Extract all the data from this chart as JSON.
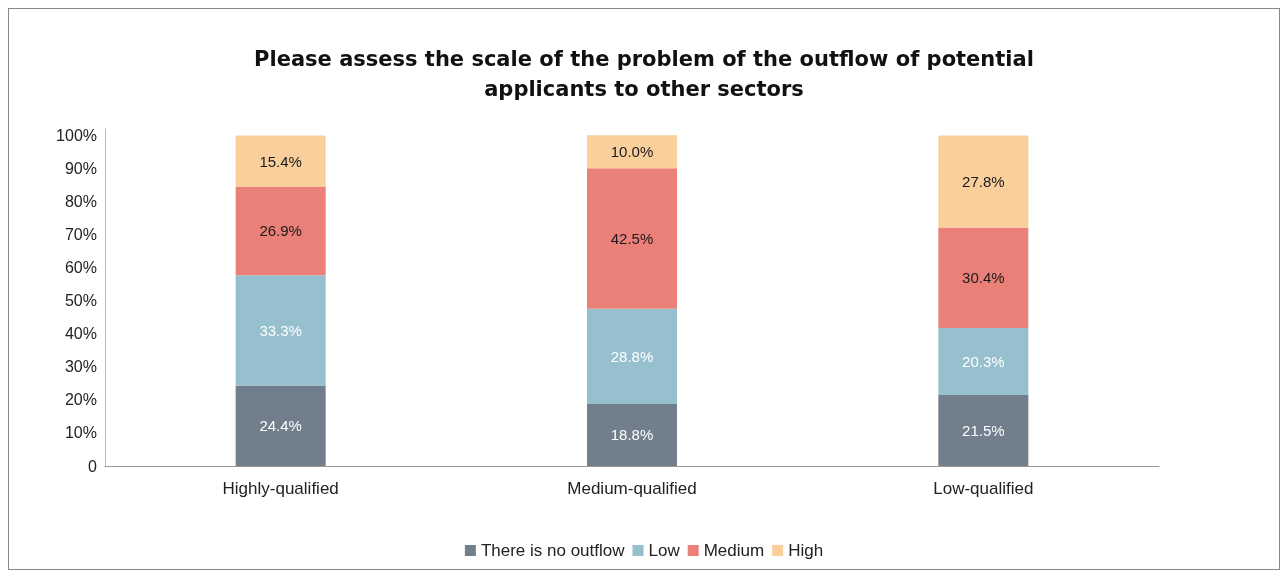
{
  "chart_data": {
    "type": "bar",
    "title": "Please assess the scale of the problem of the outflow of potential\napplicants to other sectors",
    "categories": [
      "Highly-qualified",
      "Medium-qualified",
      "Low-qualified"
    ],
    "stacked": true,
    "series": [
      {
        "name": "There is no outflow",
        "color": "#717e8b",
        "values": [
          24.4,
          18.8,
          21.5
        ],
        "value_labels": [
          "24.4%",
          "18.8%",
          "21.5%"
        ]
      },
      {
        "name": "Low",
        "color": "#97c0cf",
        "values": [
          33.3,
          28.8,
          20.3
        ],
        "value_labels": [
          "33.3%",
          "28.8%",
          "20.3%"
        ]
      },
      {
        "name": "Medium",
        "color": "#ea8077",
        "values": [
          26.9,
          42.5,
          30.4
        ],
        "value_labels": [
          "26.9%",
          "42.5%",
          "30.4%"
        ]
      },
      {
        "name": "High",
        "color": "#f9cf9c",
        "values": [
          15.4,
          10.0,
          27.8
        ],
        "value_labels": [
          "15.4%",
          "10.0%",
          "27.8%"
        ]
      }
    ],
    "ylim": [
      0,
      102
    ],
    "yticks": [
      0,
      {
        "value": 10,
        "label": "10%"
      },
      {
        "value": 20,
        "label": "20%"
      },
      {
        "value": 30,
        "label": "30%"
      },
      {
        "value": 40,
        "label": "40%"
      },
      {
        "value": 50,
        "label": "50%"
      },
      {
        "value": 60,
        "label": "60%"
      },
      {
        "value": 70,
        "label": "70%"
      },
      {
        "value": 80,
        "label": "80%"
      },
      {
        "value": 90,
        "label": "90%"
      },
      {
        "value": 100,
        "label": "100%"
      }
    ],
    "grid": false,
    "legend": "bottom"
  }
}
